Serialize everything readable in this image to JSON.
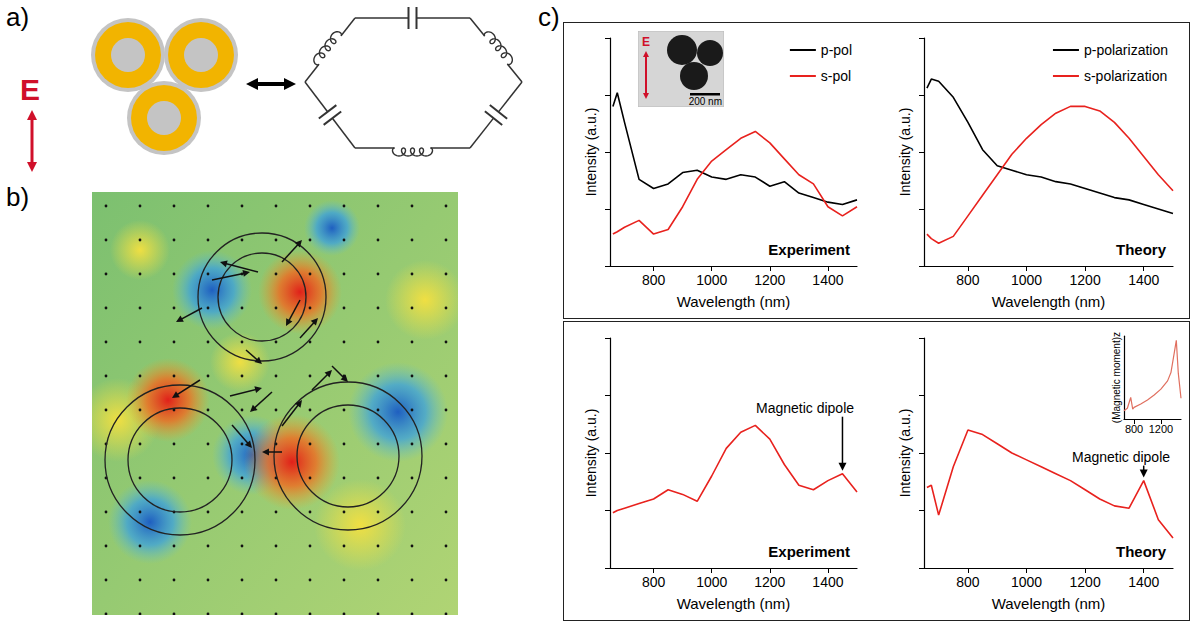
{
  "panel_labels": [
    "a)",
    "b)",
    "c)"
  ],
  "diagram": {
    "field_label": "E"
  },
  "inset_image": {
    "field_label": "E",
    "scale_bar": "200 nm"
  },
  "chart_data": [
    {
      "type": "line",
      "title": "Experiment",
      "x_label": "Wavelength (nm)",
      "y_label": "Intensity (a.u.)",
      "xlim": [
        650,
        1500
      ],
      "xticks": [
        800,
        1000,
        1200,
        1400
      ],
      "ylim": [
        0,
        10
      ],
      "yticks": [
        0,
        2.5,
        5,
        7.5,
        10
      ],
      "tick_labels": "x",
      "legend": "upper right",
      "x": [
        660,
        675,
        700,
        750,
        800,
        850,
        900,
        950,
        1000,
        1050,
        1100,
        1150,
        1200,
        1250,
        1300,
        1350,
        1400,
        1450,
        1500
      ],
      "series": [
        {
          "name": "p-pol",
          "color": "#000000",
          "values": [
            7.0,
            7.6,
            6.3,
            3.8,
            3.4,
            3.6,
            4.1,
            4.2,
            3.9,
            3.8,
            4.0,
            3.9,
            3.5,
            3.7,
            3.2,
            3.0,
            2.8,
            2.7,
            2.9
          ]
        },
        {
          "name": "s-pol",
          "color": "#e8221e",
          "values": [
            1.4,
            1.5,
            1.7,
            2.0,
            1.4,
            1.6,
            2.6,
            3.8,
            4.6,
            5.1,
            5.6,
            5.9,
            5.4,
            4.7,
            4.0,
            3.6,
            2.6,
            2.2,
            2.6
          ]
        }
      ]
    },
    {
      "type": "line",
      "title": "Theory",
      "x_label": "Wavelength (nm)",
      "y_label": "Intensity (a.u.)",
      "xlim": [
        650,
        1500
      ],
      "xticks": [
        800,
        1000,
        1200,
        1400
      ],
      "ylim": [
        0,
        10
      ],
      "yticks": [
        0,
        2.5,
        5,
        7.5,
        10
      ],
      "tick_labels": "x",
      "legend": "upper right",
      "x": [
        660,
        675,
        700,
        750,
        800,
        850,
        900,
        950,
        1000,
        1050,
        1100,
        1150,
        1200,
        1250,
        1300,
        1350,
        1400,
        1450,
        1500
      ],
      "series": [
        {
          "name": "p-polarization",
          "color": "#000000",
          "values": [
            7.8,
            8.2,
            8.1,
            7.4,
            6.3,
            5.1,
            4.4,
            4.2,
            4.0,
            3.9,
            3.7,
            3.6,
            3.4,
            3.2,
            3.0,
            2.9,
            2.7,
            2.5,
            2.3
          ]
        },
        {
          "name": "s-polarization",
          "color": "#e8221e",
          "values": [
            1.4,
            1.2,
            1.0,
            1.3,
            2.2,
            3.1,
            4.0,
            4.9,
            5.6,
            6.2,
            6.7,
            7.0,
            7.0,
            6.8,
            6.3,
            5.6,
            4.8,
            4.0,
            3.3
          ]
        }
      ]
    },
    {
      "type": "line",
      "title": "Experiment",
      "x_label": "Wavelength (nm)",
      "y_label": "Intensity (a.u.)",
      "xlim": [
        650,
        1500
      ],
      "xticks": [
        800,
        1000,
        1200,
        1400
      ],
      "ylim": [
        0,
        10
      ],
      "yticks": [
        0,
        2.5,
        5,
        7.5,
        10
      ],
      "tick_labels": "x",
      "x": [
        660,
        675,
        700,
        750,
        800,
        850,
        900,
        950,
        1000,
        1050,
        1100,
        1150,
        1200,
        1250,
        1300,
        1350,
        1400,
        1450,
        1500
      ],
      "series": [
        {
          "color": "#e8221e",
          "values": [
            2.4,
            2.5,
            2.6,
            2.8,
            3.0,
            3.4,
            3.2,
            2.9,
            4.0,
            5.2,
            5.9,
            6.2,
            5.6,
            4.5,
            3.6,
            3.4,
            3.8,
            4.1,
            3.3
          ]
        }
      ],
      "annotations": [
        {
          "text": "Magnetic dipole",
          "x": 1450,
          "y": 4.1
        }
      ]
    },
    {
      "type": "line",
      "title": "Theory",
      "x_label": "Wavelength (nm)",
      "y_label": "Intensity (a.u.)",
      "xlim": [
        650,
        1500
      ],
      "xticks": [
        800,
        1000,
        1200,
        1400
      ],
      "ylim": [
        0,
        10
      ],
      "yticks": [
        0,
        2.5,
        5,
        7.5,
        10
      ],
      "tick_labels": "x",
      "x": [
        660,
        675,
        700,
        750,
        800,
        850,
        900,
        950,
        1000,
        1050,
        1100,
        1150,
        1200,
        1250,
        1300,
        1350,
        1400,
        1450,
        1500
      ],
      "series": [
        {
          "color": "#e8221e",
          "values": [
            3.5,
            3.6,
            2.3,
            4.4,
            6.0,
            5.8,
            5.4,
            5.0,
            4.7,
            4.4,
            4.1,
            3.8,
            3.4,
            3.0,
            2.7,
            2.6,
            3.8,
            2.1,
            1.3
          ]
        }
      ],
      "annotations": [
        {
          "text": "Magnetic dipole",
          "x": 1400,
          "y": 3.8
        }
      ]
    },
    {
      "type": "line",
      "y_label": "(Magnetic moment)z",
      "xlim": [
        650,
        1500
      ],
      "xticks": [
        800,
        1200
      ],
      "ylim": [
        0,
        10
      ],
      "tick_labels": "x",
      "x": [
        650,
        700,
        750,
        780,
        800,
        900,
        1000,
        1100,
        1200,
        1300,
        1350,
        1400,
        1430,
        1460,
        1500
      ],
      "series": [
        {
          "color": "#e07060",
          "values": [
            1.0,
            1.3,
            2.6,
            1.2,
            1.4,
            1.8,
            2.3,
            2.9,
            3.6,
            4.6,
            5.6,
            8.0,
            9.5,
            5.5,
            2.5
          ]
        }
      ]
    }
  ]
}
